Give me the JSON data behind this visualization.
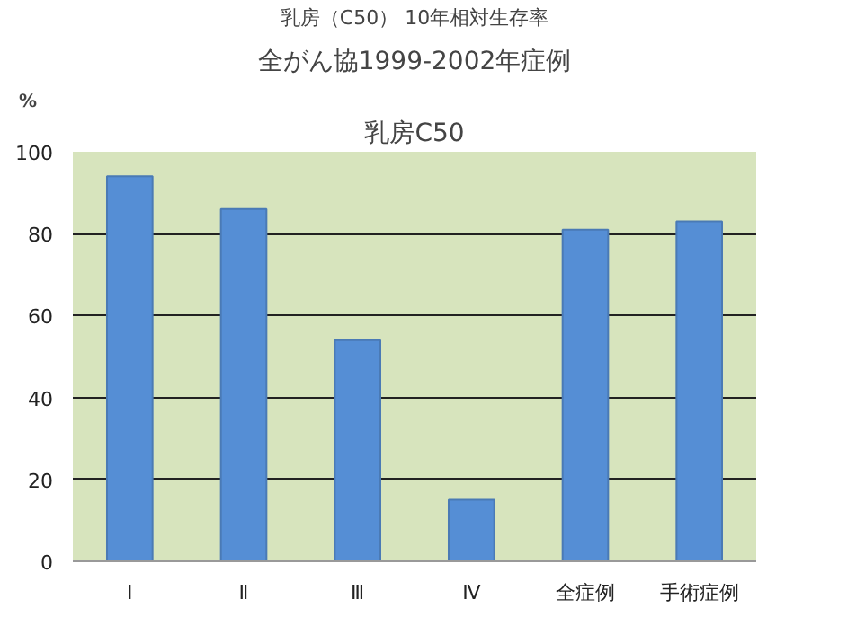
{
  "chart_data": {
    "type": "bar",
    "title": "乳房（C50） 10年相対生存率",
    "subtitle": "全がん協1999-2002年症例",
    "annotations": [
      "乳房C50"
    ],
    "ylabel": "%",
    "categories": [
      "Ⅰ",
      "Ⅱ",
      "Ⅲ",
      "Ⅳ",
      "全症例",
      "手術症例"
    ],
    "values": [
      94,
      86,
      54,
      15,
      81,
      83
    ],
    "color": "#558ed5",
    "ylim": [
      0,
      100
    ],
    "yticks": [
      0,
      20,
      40,
      60,
      80,
      100
    ],
    "grid": "y"
  }
}
